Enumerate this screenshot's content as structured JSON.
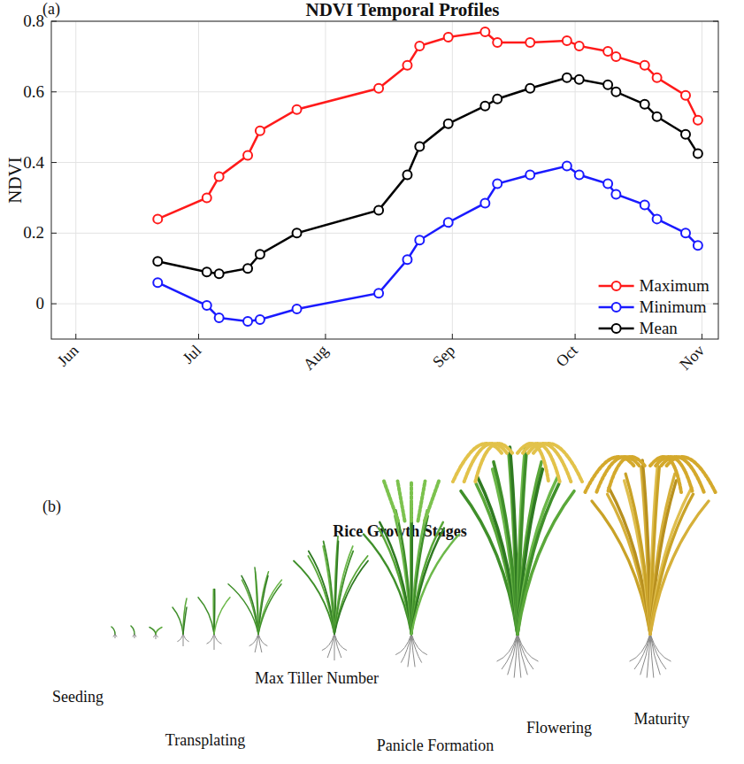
{
  "chart_data": {
    "type": "line",
    "panel": "(a)",
    "title": "NDVI Temporal Profiles",
    "y_label": "NDVI",
    "x": [
      172,
      184,
      187,
      194,
      197,
      206,
      226,
      233,
      236,
      243,
      252,
      255,
      263,
      272,
      275,
      282,
      284,
      291,
      294,
      301,
      304
    ],
    "xlim": [
      146,
      309
    ],
    "xticks": [
      {
        "value": 152,
        "label": "Jun"
      },
      {
        "value": 182,
        "label": "Jul"
      },
      {
        "value": 213,
        "label": "Aug"
      },
      {
        "value": 244,
        "label": "Sep"
      },
      {
        "value": 274,
        "label": "Oct"
      },
      {
        "value": 305,
        "label": "Nov"
      }
    ],
    "ylim": [
      -0.1,
      0.8
    ],
    "yticks": [
      0,
      0.2,
      0.4,
      0.6,
      0.8
    ],
    "grid": true,
    "legend": "lower right",
    "marker": "circle",
    "series": [
      {
        "name": "Maximum",
        "color": "#ff1a1a",
        "values": [
          0.24,
          0.3,
          0.36,
          0.42,
          0.49,
          0.55,
          0.61,
          0.675,
          0.73,
          0.755,
          0.77,
          0.74,
          0.74,
          0.745,
          0.73,
          0.715,
          0.7,
          0.675,
          0.64,
          0.59,
          0.52
        ]
      },
      {
        "name": "Minimum",
        "color": "#1a1aff",
        "values": [
          0.06,
          -0.005,
          -0.04,
          -0.05,
          -0.045,
          -0.015,
          0.03,
          0.125,
          0.18,
          0.23,
          0.285,
          0.34,
          0.365,
          0.39,
          0.365,
          0.34,
          0.31,
          0.28,
          0.24,
          0.2,
          0.165
        ]
      },
      {
        "name": "Mean",
        "color": "#000000",
        "values": [
          0.12,
          0.09,
          0.085,
          0.1,
          0.14,
          0.2,
          0.265,
          0.365,
          0.445,
          0.51,
          0.56,
          0.58,
          0.61,
          0.64,
          0.635,
          0.62,
          0.6,
          0.565,
          0.53,
          0.48,
          0.425
        ]
      }
    ]
  },
  "diagram": {
    "panel": "(b)",
    "title": "Rice Growth Stages",
    "stages": [
      "Seeding",
      "Transplating",
      "Max Tiller Number",
      "Panicle Formation",
      "Flowering",
      "Maturity"
    ]
  }
}
